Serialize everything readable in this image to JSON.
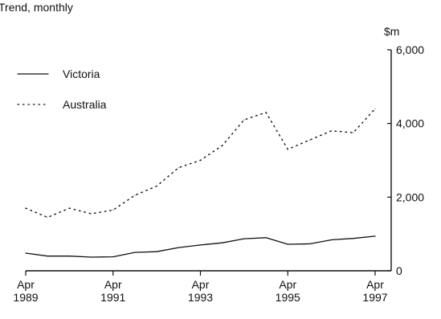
{
  "chart_data": {
    "type": "line",
    "subtitle": "Trend, monthly",
    "y_unit": "$m",
    "ylim": [
      0,
      6000
    ],
    "y_ticks": [
      {
        "value": 0,
        "label": "0"
      },
      {
        "value": 2000,
        "label": "2,000"
      },
      {
        "value": 4000,
        "label": "4,000"
      },
      {
        "value": 6000,
        "label": "6,000"
      }
    ],
    "x_ticks": [
      {
        "date": "1989-04",
        "month": "Apr",
        "year": "1989"
      },
      {
        "date": "1991-04",
        "month": "Apr",
        "year": "1991"
      },
      {
        "date": "1993-04",
        "month": "Apr",
        "year": "1993"
      },
      {
        "date": "1995-04",
        "month": "Apr",
        "year": "1995"
      },
      {
        "date": "1997-04",
        "month": "Apr",
        "year": "1997"
      }
    ],
    "xlim": [
      "1989-04",
      "1997-04"
    ],
    "grid": false,
    "legend_position": "top-left",
    "series": [
      {
        "name": "Victoria",
        "style": "solid",
        "color": "#111111",
        "x": [
          "1989-04",
          "1989-10",
          "1990-04",
          "1990-10",
          "1991-04",
          "1991-10",
          "1992-04",
          "1992-10",
          "1993-04",
          "1993-10",
          "1994-04",
          "1994-10",
          "1995-04",
          "1995-10",
          "1996-04",
          "1996-10",
          "1997-04"
        ],
        "y": [
          480,
          400,
          400,
          370,
          380,
          500,
          520,
          630,
          700,
          760,
          870,
          900,
          720,
          730,
          840,
          880,
          940
        ]
      },
      {
        "name": "Australia",
        "style": "dotted",
        "color": "#111111",
        "x": [
          "1989-04",
          "1989-10",
          "1990-04",
          "1990-10",
          "1991-04",
          "1991-10",
          "1992-04",
          "1992-10",
          "1993-04",
          "1993-10",
          "1994-04",
          "1994-10",
          "1995-04",
          "1995-10",
          "1996-04",
          "1996-10",
          "1997-04"
        ],
        "y": [
          1700,
          1450,
          1700,
          1550,
          1650,
          2050,
          2300,
          2800,
          3000,
          3400,
          4100,
          4300,
          3300,
          3550,
          3800,
          3750,
          4400
        ]
      }
    ]
  }
}
